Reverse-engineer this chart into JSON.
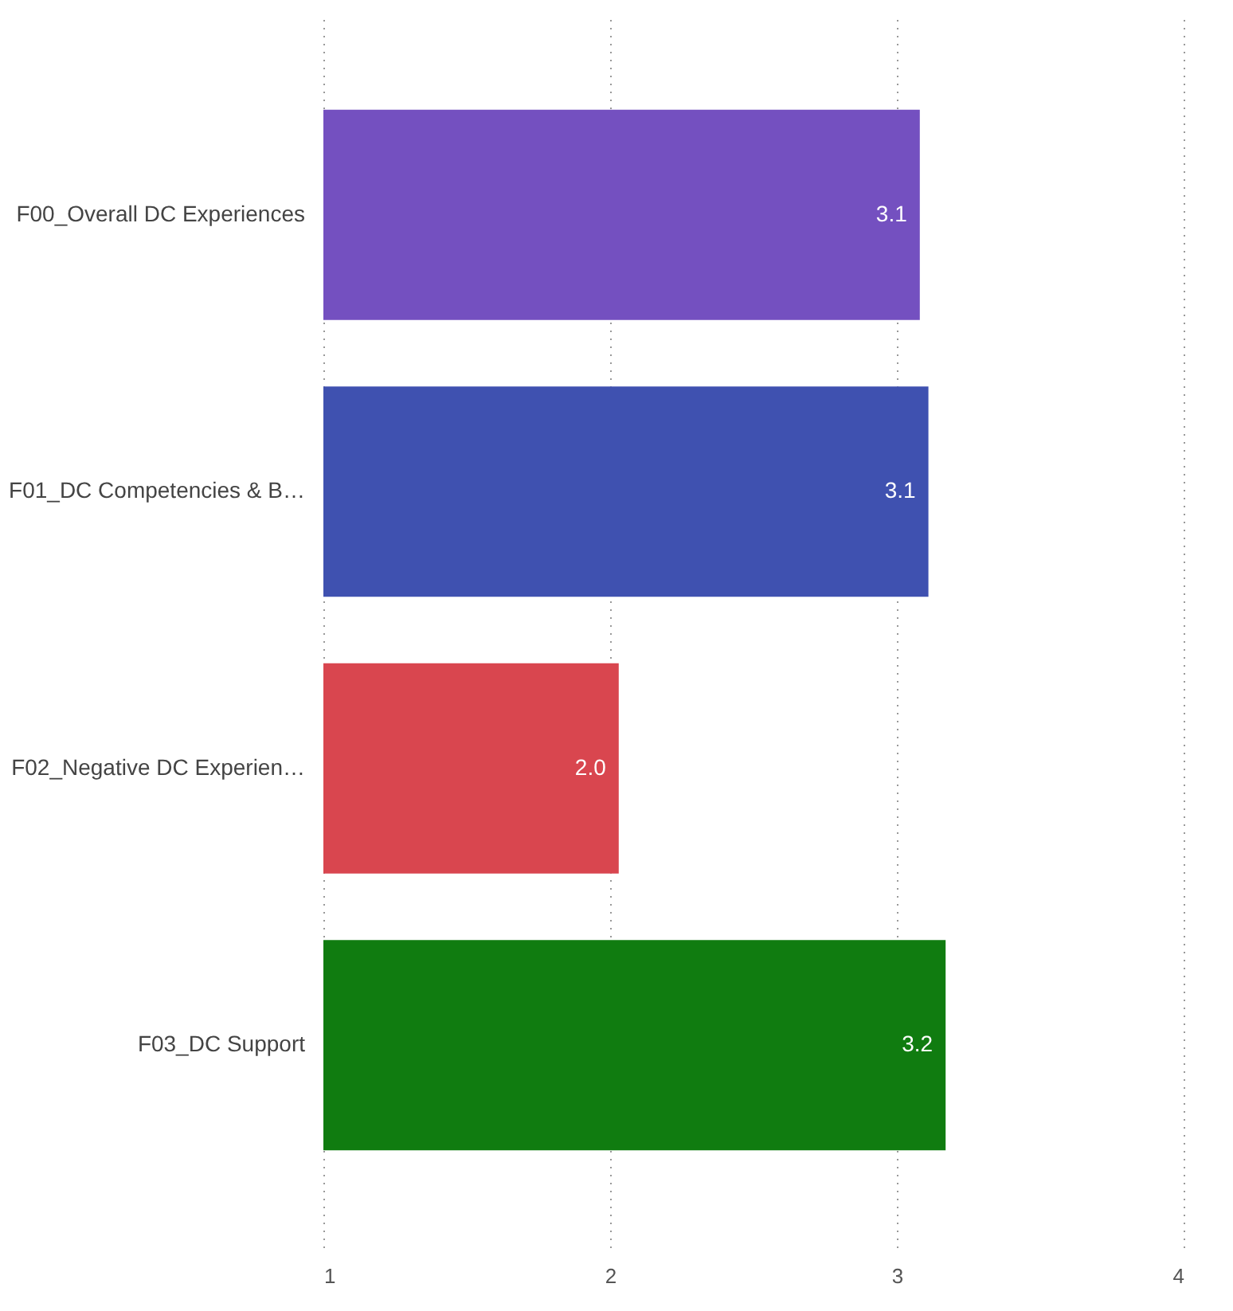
{
  "chart_data": {
    "type": "bar",
    "orientation": "horizontal",
    "categories": [
      "F00_Overall DC Experiences",
      "F01_DC Competencies & B…",
      "F02_Negative DC Experien…",
      "F03_DC Support"
    ],
    "values": [
      3.08,
      3.11,
      2.03,
      3.17
    ],
    "colors": [
      "#7450c0",
      "#3f51b0",
      "#d9464f",
      "#107c10"
    ],
    "value_labels": [
      "3.1",
      "3.1",
      "2.0",
      "3.2"
    ],
    "xlim": [
      1,
      4
    ],
    "xticks": [
      1,
      2,
      3,
      4
    ],
    "grid": "x"
  }
}
